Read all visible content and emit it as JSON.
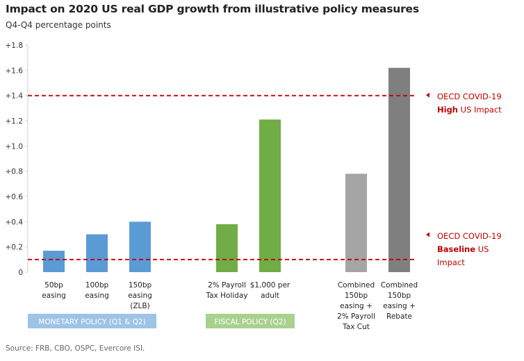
{
  "title": "Impact on 2020 US real GDP growth from illustrative policy measures",
  "subtitle": "Q4-Q4 percentage points",
  "source": "Source: FRB, CBO, OSPC, Evercore ISI.",
  "chart_data": {
    "type": "bar",
    "ylim": [
      0,
      1.8
    ],
    "yticks": [
      {
        "value": 0,
        "label": "0"
      },
      {
        "value": 0.2,
        "label": "+0.2"
      },
      {
        "value": 0.4,
        "label": "+0.4"
      },
      {
        "value": 0.6,
        "label": "+0.6"
      },
      {
        "value": 0.8,
        "label": "+0.8"
      },
      {
        "value": 1.0,
        "label": "+1.0"
      },
      {
        "value": 1.2,
        "label": "+1.2"
      },
      {
        "value": 1.4,
        "label": "+1.4"
      },
      {
        "value": 1.6,
        "label": "+1.6"
      },
      {
        "value": 1.8,
        "label": "+1.8"
      }
    ],
    "grid": false,
    "bars": [
      {
        "label_lines": [
          "50bp",
          "easing"
        ],
        "value": 0.17,
        "color": "#5b9bd5"
      },
      {
        "label_lines": [
          "100bp",
          "easing"
        ],
        "value": 0.3,
        "color": "#5b9bd5"
      },
      {
        "label_lines": [
          "150bp",
          "easing",
          "(ZLB)"
        ],
        "value": 0.4,
        "color": "#5b9bd5"
      },
      {
        "label_lines": [
          "2% Payroll",
          "Tax Holiday"
        ],
        "value": 0.38,
        "color": "#70ad47"
      },
      {
        "label_lines": [
          "$1,000 per",
          "adult"
        ],
        "value": 1.21,
        "color": "#70ad47"
      },
      {
        "label_lines": [
          "Combined",
          "150bp",
          "easing +",
          "2% Payroll",
          "Tax Cut"
        ],
        "value": 0.78,
        "color": "#a5a5a5"
      },
      {
        "label_lines": [
          "Combined",
          "150bp",
          "easing  +",
          "Rebate"
        ],
        "value": 1.62,
        "color": "#7f7f7f"
      }
    ],
    "reference_lines": [
      {
        "value": 1.4,
        "color": "#c00000",
        "label_lines": [
          [
            {
              "text": "OECD COVID-19",
              "bold": false
            }
          ],
          [
            {
              "text": "High",
              "bold": true
            },
            {
              "text": " US Impact",
              "bold": false
            }
          ]
        ]
      },
      {
        "value": 0.1,
        "color": "#c00000",
        "label_lines": [
          [
            {
              "text": "OECD COVID-19",
              "bold": false
            }
          ],
          [
            {
              "text": "Baseline",
              "bold": true
            },
            {
              "text": " US",
              "bold": false
            }
          ],
          [
            {
              "text": "Impact",
              "bold": false
            }
          ]
        ]
      }
    ],
    "groups": [
      {
        "label": "MONETARY POLICY (Q1 & Q2)",
        "color": "#9dc3e6"
      },
      {
        "label": "FISCAL POLICY (Q2)",
        "color": "#a9d18e"
      }
    ]
  }
}
